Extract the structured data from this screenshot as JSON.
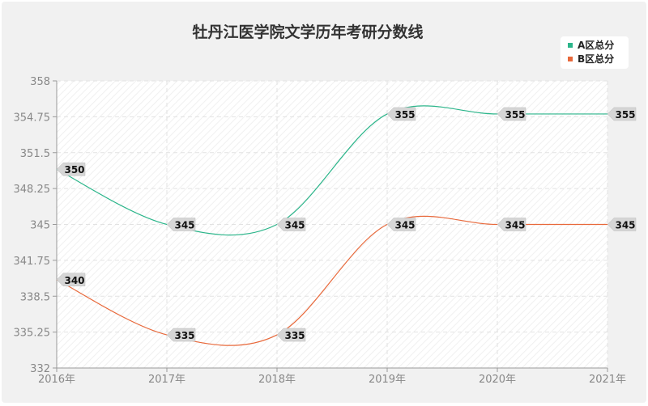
{
  "chart_data": {
    "type": "line",
    "title": "牡丹江医学院文学历年考研分数线",
    "categories": [
      "2016年",
      "2017年",
      "2018年",
      "2019年",
      "2020年",
      "2021年"
    ],
    "ylim": [
      332,
      358
    ],
    "yticks": [
      "332",
      "335.25",
      "338.5",
      "341.75",
      "345",
      "348.25",
      "351.5",
      "354.75",
      "358"
    ],
    "grid": true,
    "legend_placement": "top-right",
    "series": [
      {
        "name": "A区总分",
        "color": "#2bb58a",
        "values": [
          350,
          345,
          345,
          355,
          355,
          355
        ]
      },
      {
        "name": "B区总分",
        "color": "#e8683a",
        "values": [
          340,
          335,
          335,
          345,
          345,
          345
        ]
      }
    ]
  }
}
